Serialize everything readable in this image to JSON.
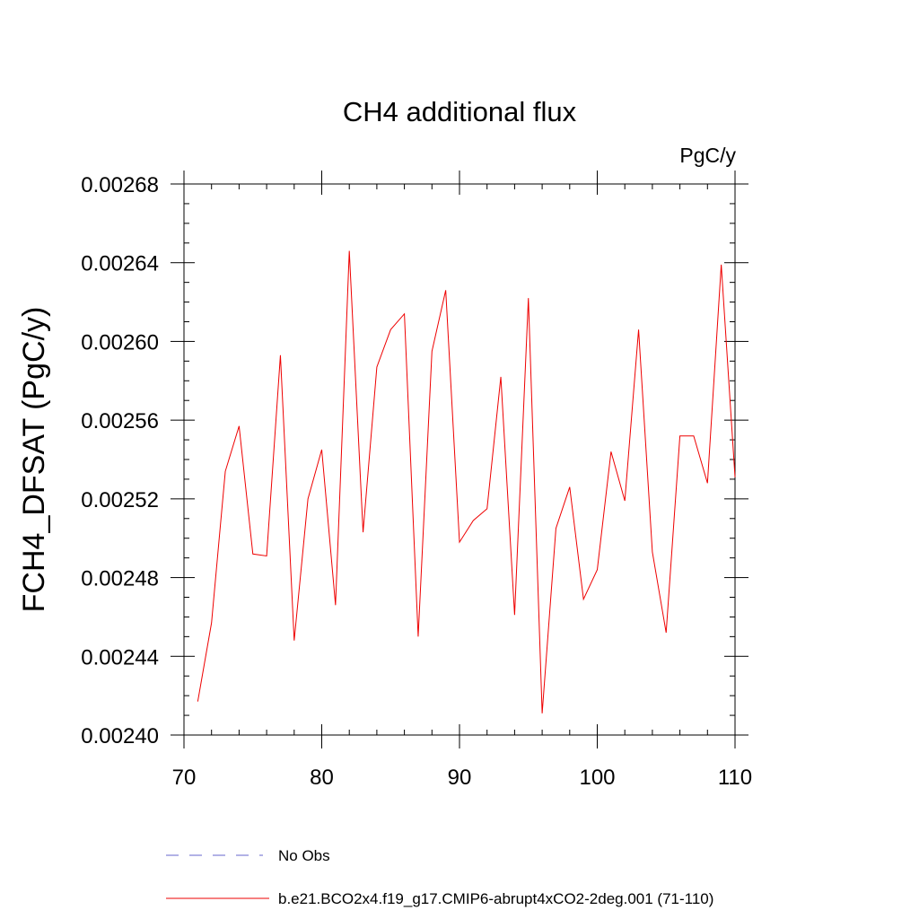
{
  "chart_data": {
    "type": "line",
    "title": "CH4 additional flux",
    "units": "PgC/y",
    "xlabel": "",
    "ylabel": "FCH4_DFSAT  (PgC/y)",
    "xlim": [
      70,
      110
    ],
    "ylim": [
      0.0024,
      0.00268
    ],
    "x_ticks": [
      "70",
      "80",
      "90",
      "100",
      "110"
    ],
    "y_ticks": [
      "0.00240",
      "0.00244",
      "0.00248",
      "0.00252",
      "0.00256",
      "0.00260",
      "0.00264",
      "0.00268"
    ],
    "grid": false,
    "legend_position": "bottom",
    "legend": [
      {
        "label": "No Obs",
        "color": "#5555cc",
        "dash": "dashed"
      },
      {
        "label": "b.e21.BCO2x4.f19_g17.CMIP6-abrupt4xCO2-2deg.001 (71-110)",
        "color": "#ee0000",
        "dash": "solid"
      }
    ],
    "series": [
      {
        "name": "b.e21.BCO2x4.f19_g17.CMIP6-abrupt4xCO2-2deg.001 (71-110)",
        "color": "#ee0000",
        "x": [
          71,
          72,
          73,
          74,
          75,
          76,
          77,
          78,
          79,
          80,
          81,
          82,
          83,
          84,
          85,
          86,
          87,
          88,
          89,
          90,
          91,
          92,
          93,
          94,
          95,
          96,
          97,
          98,
          99,
          100,
          101,
          102,
          103,
          104,
          105,
          106,
          107,
          108,
          109,
          110
        ],
        "y": [
          0.002417,
          0.002457,
          0.002534,
          0.002557,
          0.002492,
          0.002491,
          0.002593,
          0.002448,
          0.00252,
          0.002545,
          0.002466,
          0.002646,
          0.002503,
          0.002587,
          0.002606,
          0.002614,
          0.00245,
          0.002595,
          0.002626,
          0.002498,
          0.002509,
          0.002515,
          0.002582,
          0.002461,
          0.002622,
          0.002411,
          0.002505,
          0.002526,
          0.002469,
          0.002484,
          0.002544,
          0.002519,
          0.002606,
          0.002493,
          0.002452,
          0.002552,
          0.002552,
          0.002528,
          0.002639,
          0.002531
        ]
      }
    ]
  }
}
